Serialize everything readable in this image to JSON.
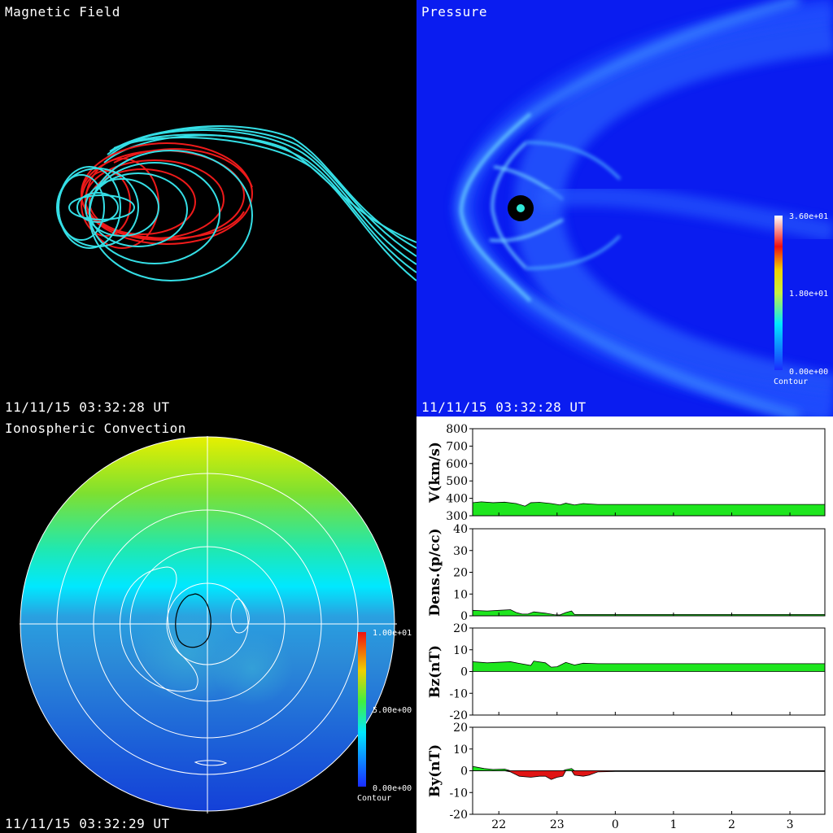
{
  "panels": {
    "magnetic_field": {
      "title": "Magnetic Field",
      "timestamp": "11/11/15 03:32:28 UT"
    },
    "pressure": {
      "title": "Pressure",
      "timestamp": "11/11/15 03:32:28 UT",
      "colorbar": {
        "max_label": "3.60e+01",
        "mid_label": "1.80e+01",
        "min_label": "0.00e+00",
        "caption": "Contour"
      }
    },
    "ionospheric_convection": {
      "title": "Ionospheric Convection",
      "timestamp": "11/11/15 03:32:29 UT",
      "colorbar": {
        "max_label": "1.00e+01",
        "mid_label": "5.00e+00",
        "min_label": "0.00e+00",
        "caption": "Contour"
      }
    }
  },
  "chart_data": {
    "type": "area",
    "x_tick_labels": [
      "22",
      "23",
      "0",
      "1",
      "2",
      "3"
    ],
    "x_ticks": [
      22,
      23,
      24,
      25,
      26,
      27
    ],
    "xlim": [
      21.55,
      27.6
    ],
    "colors": {
      "positive": "#1ee61e",
      "negative": "#e01414",
      "edge": "#000000"
    },
    "panels": [
      {
        "ylabel": "V(km/s)",
        "ylim": [
          300,
          800
        ],
        "yticks": [
          300,
          400,
          500,
          600,
          700,
          800
        ],
        "baseline": 300,
        "x": [
          21.55,
          21.7,
          21.9,
          22.1,
          22.3,
          22.45,
          22.55,
          22.7,
          22.9,
          23.05,
          23.15,
          23.3,
          23.45,
          23.7,
          24,
          25,
          26,
          27,
          27.6
        ],
        "y": [
          375,
          380,
          375,
          378,
          370,
          355,
          375,
          377,
          370,
          362,
          372,
          362,
          370,
          365,
          365,
          365,
          365,
          365,
          365
        ]
      },
      {
        "ylabel": "Dens.(p/cc)",
        "ylim": [
          0,
          40
        ],
        "yticks": [
          0,
          10,
          20,
          30,
          40
        ],
        "baseline": 0,
        "x": [
          21.55,
          21.8,
          22,
          22.2,
          22.3,
          22.4,
          22.5,
          22.6,
          22.8,
          22.95,
          23.05,
          23.15,
          23.25,
          23.3,
          23.45,
          23.7,
          24,
          25,
          26,
          27,
          27.6
        ],
        "y": [
          2.5,
          2.2,
          2.5,
          2.8,
          1.5,
          0.8,
          0.8,
          1.8,
          1.2,
          0.5,
          0.4,
          1.5,
          2.2,
          0.6,
          0.6,
          0.6,
          0.6,
          0.6,
          0.6,
          0.6,
          0.6
        ]
      },
      {
        "ylabel": "Bz(nT)",
        "ylim": [
          -20,
          20
        ],
        "yticks": [
          -20,
          -10,
          0,
          10,
          20
        ],
        "baseline": 0,
        "x": [
          21.55,
          21.8,
          22.2,
          22.4,
          22.55,
          22.6,
          22.8,
          22.9,
          23.0,
          23.15,
          23.3,
          23.45,
          23.7,
          24,
          25,
          26,
          27,
          27.6
        ],
        "y": [
          4.5,
          4.0,
          4.5,
          3.5,
          2.8,
          4.8,
          4.0,
          2.0,
          2.2,
          4.2,
          3.0,
          3.8,
          3.6,
          3.6,
          3.6,
          3.6,
          3.6,
          3.6
        ]
      },
      {
        "ylabel": "By(nT)",
        "ylim": [
          -20,
          20
        ],
        "yticks": [
          -20,
          -10,
          0,
          10,
          20
        ],
        "baseline": 0,
        "x": [
          21.55,
          21.75,
          21.9,
          22.1,
          22.2,
          22.35,
          22.55,
          22.7,
          22.8,
          22.9,
          23.0,
          23.1,
          23.15,
          23.25,
          23.3,
          23.45,
          23.55,
          23.7,
          24,
          25,
          26,
          27,
          27.6
        ],
        "y": [
          2.0,
          1.0,
          0.6,
          0.8,
          -0.5,
          -2.5,
          -3.0,
          -2.5,
          -2.5,
          -4.0,
          -3.0,
          -2.5,
          0.5,
          1.0,
          -2.0,
          -2.5,
          -2.0,
          -0.5,
          -0.3,
          -0.3,
          -0.3,
          -0.3,
          -0.3
        ]
      }
    ]
  }
}
